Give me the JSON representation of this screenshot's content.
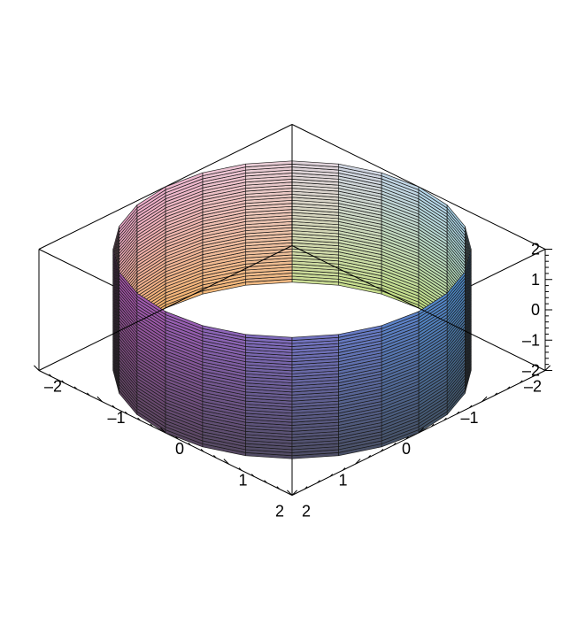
{
  "chart_data": {
    "type": "surface3d",
    "title": "",
    "surface": "cylinder",
    "radius": 2,
    "z_range": [
      -2,
      2
    ],
    "theta_steps": 24,
    "z_steps": 40,
    "axes": {
      "style": "boxed",
      "x": {
        "range": [
          -2,
          2
        ],
        "ticks": [
          -2,
          -1,
          0,
          1,
          2
        ],
        "tick_labels": [
          "–2",
          "–1",
          "0",
          "1",
          "2"
        ]
      },
      "y": {
        "range": [
          -2,
          2
        ],
        "ticks": [
          -2,
          -1,
          0,
          1,
          2
        ],
        "tick_labels": [
          "–2",
          "–1",
          "0",
          "1",
          "2"
        ]
      },
      "z": {
        "range": [
          -2,
          2
        ],
        "ticks": [
          -2,
          -1,
          0,
          1,
          2
        ],
        "tick_labels": [
          "–2",
          "–1",
          "0",
          "1",
          "2"
        ]
      }
    },
    "colors": {
      "axes": "#000000",
      "mesh": "#1a1a1a",
      "palette": {
        "front": "#e8d3d8",
        "left": "#f0a6c9",
        "right": "#a8d8f0",
        "bottom_left": "#f5b062",
        "bottom_right": "#bfe07a",
        "back_left": "#b055b0",
        "back_right": "#4a8fd0",
        "back": "#7a70c0"
      }
    }
  }
}
